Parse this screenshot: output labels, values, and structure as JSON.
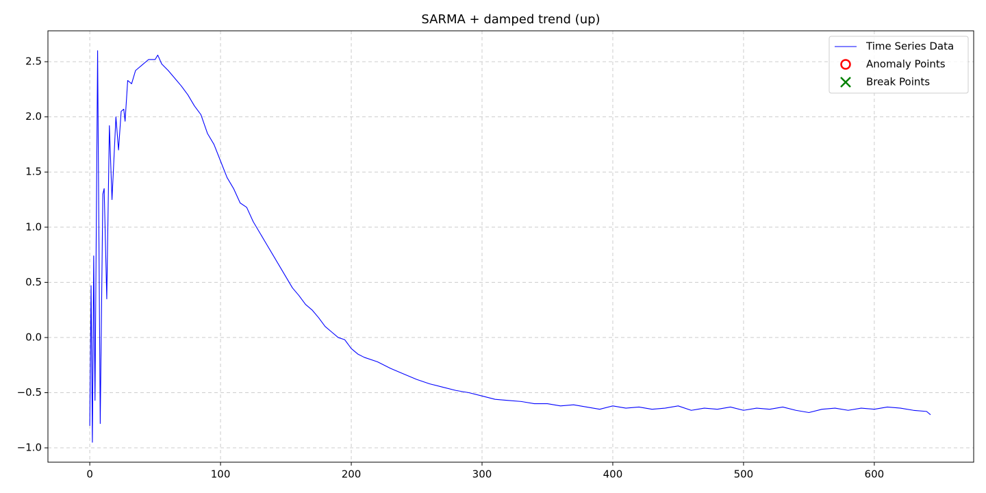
{
  "chart_data": {
    "type": "line",
    "title": "SARMA + damped trend (up)",
    "series": [
      {
        "name": "Time Series Data",
        "color": "#0000ff",
        "marker": "line",
        "x": [
          0,
          1,
          2,
          3,
          4,
          6,
          8,
          10,
          11,
          13,
          15,
          17,
          20,
          22,
          24,
          26,
          27,
          29,
          32,
          35,
          40,
          45,
          50,
          52,
          55,
          60,
          65,
          70,
          75,
          80,
          85,
          90,
          95,
          100,
          105,
          110,
          115,
          120,
          125,
          130,
          135,
          140,
          145,
          150,
          155,
          160,
          165,
          170,
          175,
          180,
          185,
          190,
          195,
          200,
          205,
          210,
          220,
          230,
          240,
          250,
          260,
          270,
          280,
          290,
          300,
          310,
          320,
          330,
          340,
          350,
          360,
          370,
          380,
          390,
          400,
          410,
          420,
          430,
          440,
          450,
          460,
          470,
          480,
          490,
          500,
          510,
          520,
          530,
          540,
          550,
          560,
          570,
          580,
          590,
          600,
          610,
          620,
          630,
          640,
          643
        ],
        "values": [
          -0.8,
          0.47,
          -0.95,
          0.74,
          -0.57,
          2.6,
          -0.78,
          1.3,
          1.35,
          0.35,
          1.92,
          1.25,
          2.0,
          1.7,
          2.05,
          2.07,
          1.96,
          2.33,
          2.3,
          2.42,
          2.47,
          2.52,
          2.52,
          2.56,
          2.48,
          2.42,
          2.35,
          2.28,
          2.2,
          2.1,
          2.02,
          1.85,
          1.75,
          1.6,
          1.45,
          1.35,
          1.22,
          1.18,
          1.05,
          0.95,
          0.85,
          0.75,
          0.65,
          0.55,
          0.45,
          0.38,
          0.3,
          0.25,
          0.18,
          0.1,
          0.05,
          0.0,
          -0.02,
          -0.1,
          -0.15,
          -0.18,
          -0.22,
          -0.28,
          -0.33,
          -0.38,
          -0.42,
          -0.45,
          -0.48,
          -0.5,
          -0.53,
          -0.56,
          -0.57,
          -0.58,
          -0.6,
          -0.6,
          -0.62,
          -0.61,
          -0.63,
          -0.65,
          -0.62,
          -0.64,
          -0.63,
          -0.65,
          -0.64,
          -0.62,
          -0.66,
          -0.64,
          -0.65,
          -0.63,
          -0.66,
          -0.64,
          -0.65,
          -0.63,
          -0.66,
          -0.68,
          -0.65,
          -0.64,
          -0.66,
          -0.64,
          -0.65,
          -0.63,
          -0.64,
          -0.66,
          -0.67,
          -0.7
        ]
      },
      {
        "name": "Anomaly Points",
        "color": "#ff0000",
        "marker": "circle",
        "x": [],
        "values": []
      },
      {
        "name": "Break Points",
        "color": "#008000",
        "marker": "x",
        "x": [],
        "values": []
      }
    ],
    "xlim": [
      -32,
      676
    ],
    "ylim": [
      -1.13,
      2.78
    ],
    "xticks": [
      0,
      100,
      200,
      300,
      400,
      500,
      600
    ],
    "yticks": [
      {
        "value": -1.0,
        "label": "−1.0"
      },
      {
        "value": -0.5,
        "label": "−0.5"
      },
      {
        "value": 0.0,
        "label": "0.0"
      },
      0.5,
      {
        "value": 1.0,
        "label": "1.0"
      },
      1.5,
      {
        "value": 2.0,
        "label": "2.0"
      },
      2.5
    ],
    "grid": true,
    "legend": "upper right"
  }
}
